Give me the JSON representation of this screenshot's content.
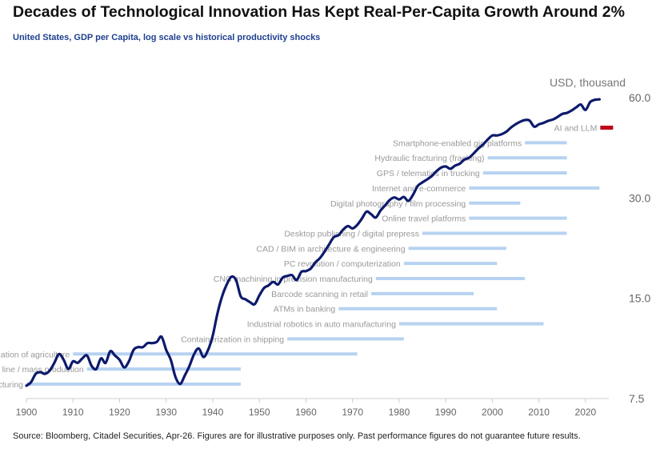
{
  "header": {
    "title": "Decades of Technological Innovation Has Kept Real-Per-Capita Growth Around 2%",
    "subtitle": "United States, GDP per Capita, log scale vs historical productivity shocks"
  },
  "footer": {
    "source": "Source: Bloomberg, Citadel Securities, Apr-26. Figures are for illustrative purposes only. Past performance figures do not guarantee future results."
  },
  "colors": {
    "line": "#0d1a6b",
    "shock_bar": "#b7d2f1",
    "ai_bar": "#c00018",
    "axis": "#cccccc"
  },
  "chart_data": {
    "type": "line",
    "title": "Decades of Technological Innovation Has Kept Real-Per-Capita Growth Around 2%",
    "subtitle": "United States, GDP per Capita, log scale vs historical productivity shocks",
    "ylabel": "USD, thousand",
    "y_scale": "log",
    "ylim": [
      7.5,
      60
    ],
    "y_ticks": [
      7.5,
      15.0,
      30.0,
      60.0
    ],
    "y_tick_labels": [
      "7.5",
      "15.0",
      "30.0",
      "60.0"
    ],
    "y_axis_side": "right",
    "xlim": [
      1900,
      2025
    ],
    "x_ticks": [
      1900,
      1910,
      1920,
      1930,
      1940,
      1950,
      1960,
      1970,
      1980,
      1990,
      2000,
      2010,
      2020
    ],
    "grid": false,
    "series": [
      {
        "values": [
          [
            1900,
            8.2
          ],
          [
            1901,
            8.4
          ],
          [
            1902,
            8.9
          ],
          [
            1903,
            9.0
          ],
          [
            1904,
            8.9
          ],
          [
            1905,
            9.1
          ],
          [
            1906,
            9.6
          ],
          [
            1907,
            10.2
          ],
          [
            1908,
            9.8
          ],
          [
            1909,
            9.2
          ],
          [
            1910,
            9.7
          ],
          [
            1911,
            9.6
          ],
          [
            1912,
            9.9
          ],
          [
            1913,
            10.1
          ],
          [
            1914,
            9.4
          ],
          [
            1915,
            9.2
          ],
          [
            1916,
            9.9
          ],
          [
            1917,
            9.6
          ],
          [
            1918,
            10.4
          ],
          [
            1919,
            10.1
          ],
          [
            1920,
            9.8
          ],
          [
            1921,
            9.3
          ],
          [
            1922,
            9.7
          ],
          [
            1923,
            10.5
          ],
          [
            1924,
            10.7
          ],
          [
            1925,
            10.7
          ],
          [
            1926,
            11.0
          ],
          [
            1927,
            11.0
          ],
          [
            1928,
            11.1
          ],
          [
            1929,
            11.5
          ],
          [
            1930,
            10.5
          ],
          [
            1931,
            9.8
          ],
          [
            1932,
            8.7
          ],
          [
            1933,
            8.3
          ],
          [
            1934,
            8.8
          ],
          [
            1935,
            9.4
          ],
          [
            1936,
            10.2
          ],
          [
            1937,
            10.6
          ],
          [
            1938,
            10.0
          ],
          [
            1939,
            10.5
          ],
          [
            1940,
            11.6
          ],
          [
            1941,
            13.5
          ],
          [
            1942,
            15.2
          ],
          [
            1943,
            16.5
          ],
          [
            1944,
            17.4
          ],
          [
            1945,
            17.0
          ],
          [
            1946,
            15.2
          ],
          [
            1947,
            14.9
          ],
          [
            1948,
            14.6
          ],
          [
            1949,
            14.4
          ],
          [
            1950,
            15.3
          ],
          [
            1951,
            16.1
          ],
          [
            1952,
            16.4
          ],
          [
            1953,
            16.8
          ],
          [
            1954,
            16.5
          ],
          [
            1955,
            17.3
          ],
          [
            1956,
            17.5
          ],
          [
            1957,
            17.6
          ],
          [
            1958,
            17.0
          ],
          [
            1959,
            18.0
          ],
          [
            1960,
            18.1
          ],
          [
            1961,
            18.4
          ],
          [
            1962,
            19.2
          ],
          [
            1963,
            19.8
          ],
          [
            1964,
            20.7
          ],
          [
            1965,
            21.8
          ],
          [
            1966,
            22.9
          ],
          [
            1967,
            23.2
          ],
          [
            1968,
            24.1
          ],
          [
            1969,
            24.7
          ],
          [
            1970,
            24.3
          ],
          [
            1971,
            24.9
          ],
          [
            1972,
            26.0
          ],
          [
            1973,
            27.3
          ],
          [
            1974,
            26.8
          ],
          [
            1975,
            26.2
          ],
          [
            1976,
            27.5
          ],
          [
            1977,
            28.5
          ],
          [
            1978,
            29.6
          ],
          [
            1979,
            30.1
          ],
          [
            1980,
            29.7
          ],
          [
            1981,
            30.2
          ],
          [
            1982,
            29.4
          ],
          [
            1983,
            30.7
          ],
          [
            1984,
            32.6
          ],
          [
            1985,
            33.4
          ],
          [
            1986,
            34.1
          ],
          [
            1987,
            34.9
          ],
          [
            1988,
            36.1
          ],
          [
            1989,
            37.0
          ],
          [
            1990,
            37.3
          ],
          [
            1991,
            36.7
          ],
          [
            1992,
            37.5
          ],
          [
            1993,
            38.0
          ],
          [
            1994,
            39.1
          ],
          [
            1995,
            39.6
          ],
          [
            1996,
            40.8
          ],
          [
            1997,
            42.2
          ],
          [
            1998,
            43.4
          ],
          [
            1999,
            44.9
          ],
          [
            2000,
            46.2
          ],
          [
            2001,
            46.2
          ],
          [
            2002,
            46.6
          ],
          [
            2003,
            47.4
          ],
          [
            2004,
            48.8
          ],
          [
            2005,
            49.9
          ],
          [
            2006,
            50.8
          ],
          [
            2007,
            51.4
          ],
          [
            2008,
            51.2
          ],
          [
            2009,
            49.1
          ],
          [
            2010,
            49.9
          ],
          [
            2011,
            50.4
          ],
          [
            2012,
            51.1
          ],
          [
            2013,
            51.6
          ],
          [
            2014,
            52.5
          ],
          [
            2015,
            53.6
          ],
          [
            2016,
            54.0
          ],
          [
            2017,
            54.9
          ],
          [
            2018,
            56.1
          ],
          [
            2019,
            57.2
          ],
          [
            2020,
            55.1
          ],
          [
            2021,
            58.2
          ],
          [
            2022,
            59.1
          ],
          [
            2023,
            59.3
          ]
        ]
      }
    ],
    "shocks": [
      {
        "label": "AI and LLM",
        "start": 2020,
        "end": 2023,
        "highlight": true
      },
      {
        "label": "Smartphone-enabled gig platforms",
        "start": 2007,
        "end": 2016
      },
      {
        "label": "Hydraulic fracturing (fracking)",
        "start": 1999,
        "end": 2016
      },
      {
        "label": "GPS / telematics in trucking",
        "start": 1998,
        "end": 2016
      },
      {
        "label": "Internet and e-commerce",
        "start": 1995,
        "end": 2023
      },
      {
        "label": "Digital photography / film processing",
        "start": 1995,
        "end": 2006
      },
      {
        "label": "Online travel platforms",
        "start": 1995,
        "end": 2016
      },
      {
        "label": "Desktop publishing / digital prepress",
        "start": 1985,
        "end": 2016
      },
      {
        "label": "CAD / BIM in architecture & engineering",
        "start": 1982,
        "end": 2003
      },
      {
        "label": "PC revolution / computerization",
        "start": 1981,
        "end": 2001
      },
      {
        "label": "CNC machining in precision manufacturing",
        "start": 1975,
        "end": 2007
      },
      {
        "label": "Barcode scanning in retail",
        "start": 1974,
        "end": 1996
      },
      {
        "label": "ATMs in banking",
        "start": 1967,
        "end": 2001
      },
      {
        "label": "Industrial robotics in auto manufacturing",
        "start": 1980,
        "end": 2011
      },
      {
        "label": "Containerization in shipping",
        "start": 1956,
        "end": 1981
      },
      {
        "label": "Mechanization of agriculture",
        "start": 1910,
        "end": 1971
      },
      {
        "label": "Assembly line / mass production",
        "start": 1913,
        "end": 1946
      },
      {
        "label": "Electrification of manufacturing",
        "start": 1900,
        "end": 1946
      }
    ]
  }
}
